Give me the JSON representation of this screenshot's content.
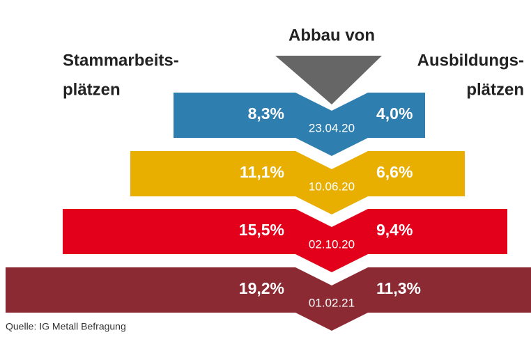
{
  "title": "Abbau von",
  "left_label": [
    "Stammarbeits-",
    "plätzen"
  ],
  "right_label": [
    "Ausbildungs-",
    "plätzen"
  ],
  "rows": [
    {
      "date": "23.04.20",
      "left": "8,3%",
      "right": "4,0%"
    },
    {
      "date": "10.06.20",
      "left": "11,1%",
      "right": "6,6%"
    },
    {
      "date": "02.10.20",
      "left": "15,5%",
      "right": "9,4%"
    },
    {
      "date": "01.02.21",
      "left": "19,2%",
      "right": "11,3%"
    }
  ],
  "source": "Quelle: IG Metall Befragung"
}
